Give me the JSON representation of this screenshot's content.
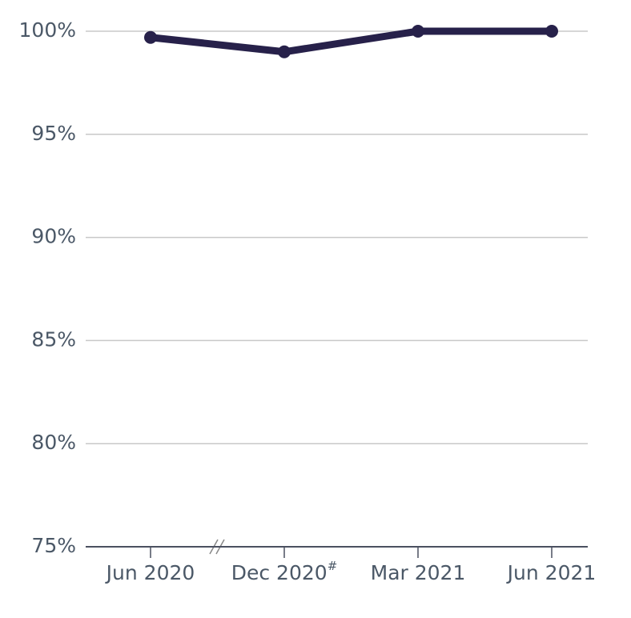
{
  "chart_data": {
    "type": "line",
    "categories": [
      "Jun 2020",
      "Dec 2020",
      "Mar 2021",
      "Jun 2021"
    ],
    "category_notes": [
      null,
      "#",
      null,
      null
    ],
    "series": [
      {
        "color": "#27214a",
        "values": [
          99.7,
          99.0,
          100,
          100
        ]
      }
    ],
    "ylim": [
      75,
      100
    ],
    "yticks": [
      {
        "value": 75,
        "label": "75%"
      },
      {
        "value": 80,
        "label": "80%"
      },
      {
        "value": 85,
        "label": "85%"
      },
      {
        "value": 90,
        "label": "90%"
      },
      {
        "value": 95,
        "label": "95%"
      },
      {
        "value": 100,
        "label": "100%"
      }
    ],
    "grid": true
  }
}
